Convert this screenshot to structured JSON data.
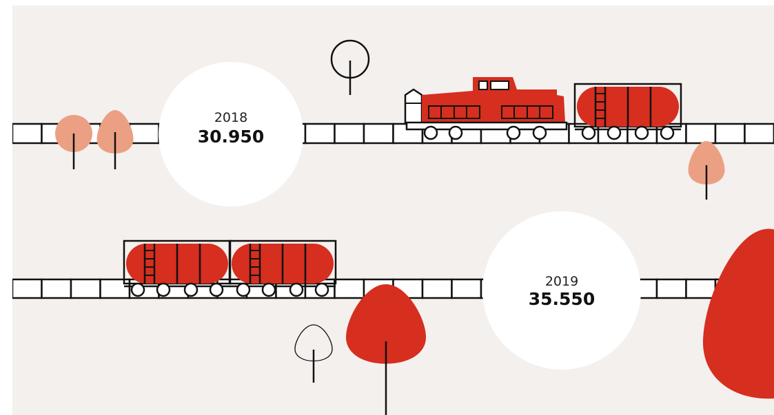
{
  "stats": [
    {
      "year": "2018",
      "value": "30.950"
    },
    {
      "year": "2019",
      "value": "35.550"
    }
  ]
}
